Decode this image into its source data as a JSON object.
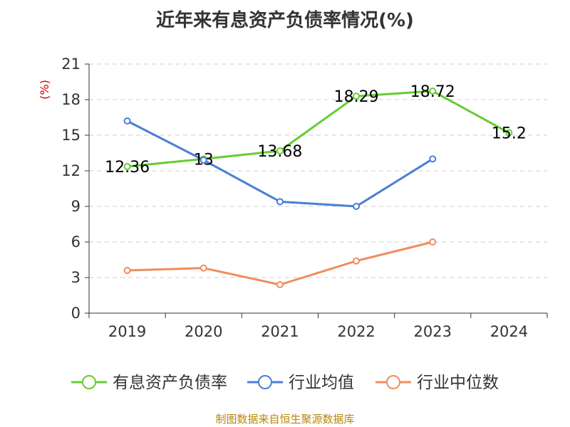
{
  "chart_data": {
    "type": "line",
    "title": "近年来有息资产负债率情况(%)",
    "ylabel": "(%)",
    "xlabel": "",
    "categories": [
      "2019",
      "2020",
      "2021",
      "2022",
      "2023",
      "2024"
    ],
    "yticks": [
      "0",
      "3",
      "6",
      "9",
      "12",
      "15",
      "18",
      "21"
    ],
    "ylim": [
      0,
      21
    ],
    "grid": true,
    "legend_position": "bottom",
    "series": [
      {
        "name": "有息资产负债率",
        "color": "#66cc33",
        "values": [
          12.36,
          13,
          13.68,
          18.29,
          18.72,
          15.2
        ],
        "labels": [
          "12.36",
          "13",
          "13.68",
          "18.29",
          "18.72",
          "15.2"
        ]
      },
      {
        "name": "行业均值",
        "color": "#4a7fd6",
        "values": [
          16.2,
          12.9,
          9.4,
          9.0,
          13.0,
          null
        ]
      },
      {
        "name": "行业中位数",
        "color": "#f28c5a",
        "values": [
          3.6,
          3.8,
          2.4,
          4.4,
          6.0,
          null
        ]
      }
    ]
  },
  "source": "制图数据来自恒生聚源数据库"
}
